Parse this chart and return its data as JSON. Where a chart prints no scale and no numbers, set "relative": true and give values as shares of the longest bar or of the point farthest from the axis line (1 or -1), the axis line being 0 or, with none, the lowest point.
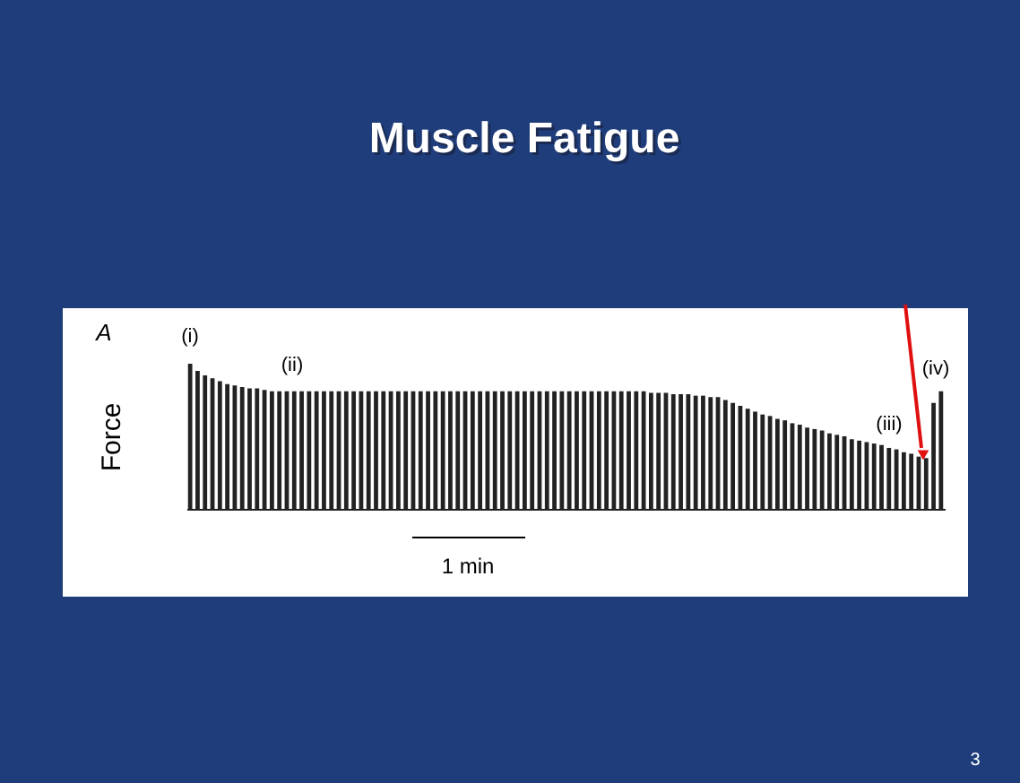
{
  "chart_data": {
    "type": "bar",
    "title": "Muscle Fatigue",
    "ylabel": "Force",
    "relative": true,
    "color": "#222222",
    "categories": [
      null,
      null,
      null,
      null,
      null,
      null,
      null,
      null,
      null,
      null,
      null,
      null,
      null,
      null,
      null,
      null,
      null,
      null,
      null,
      null,
      null,
      null,
      null,
      null,
      null,
      null,
      null,
      null,
      null,
      null,
      null,
      null,
      null,
      null,
      null,
      null,
      null,
      null,
      null,
      null,
      null,
      null,
      null,
      null,
      null,
      null,
      null,
      null,
      null,
      null,
      null,
      null,
      null,
      null,
      null,
      null,
      null,
      null,
      null,
      null,
      null,
      null,
      null,
      null,
      null,
      null,
      null,
      null,
      null,
      null,
      null,
      null,
      null,
      null,
      null,
      null,
      null,
      null,
      null,
      null,
      null,
      null,
      null,
      null,
      null,
      null,
      null,
      null,
      null,
      null,
      null,
      null,
      null,
      null,
      null,
      null,
      null,
      null,
      null,
      null,
      null,
      null
    ],
    "values": [
      1.0,
      0.95,
      0.92,
      0.9,
      0.88,
      0.86,
      0.85,
      0.84,
      0.83,
      0.83,
      0.82,
      0.81,
      0.81,
      0.81,
      0.81,
      0.81,
      0.81,
      0.81,
      0.81,
      0.81,
      0.81,
      0.81,
      0.81,
      0.81,
      0.81,
      0.81,
      0.81,
      0.81,
      0.81,
      0.81,
      0.81,
      0.81,
      0.81,
      0.81,
      0.81,
      0.81,
      0.81,
      0.81,
      0.81,
      0.81,
      0.81,
      0.81,
      0.81,
      0.81,
      0.81,
      0.81,
      0.81,
      0.81,
      0.81,
      0.81,
      0.81,
      0.81,
      0.81,
      0.81,
      0.81,
      0.81,
      0.81,
      0.81,
      0.81,
      0.81,
      0.81,
      0.81,
      0.8,
      0.8,
      0.8,
      0.79,
      0.79,
      0.79,
      0.78,
      0.78,
      0.77,
      0.77,
      0.75,
      0.73,
      0.71,
      0.69,
      0.67,
      0.65,
      0.64,
      0.62,
      0.61,
      0.59,
      0.58,
      0.56,
      0.55,
      0.54,
      0.52,
      0.51,
      0.5,
      0.48,
      0.47,
      0.46,
      0.45,
      0.44,
      0.42,
      0.41,
      0.39,
      0.38,
      0.36,
      0.35,
      0.73,
      0.81
    ],
    "annotations": [
      "A",
      "(i)",
      "(ii)",
      "(iii)",
      "(iv)",
      "1 min",
      "3"
    ]
  }
}
